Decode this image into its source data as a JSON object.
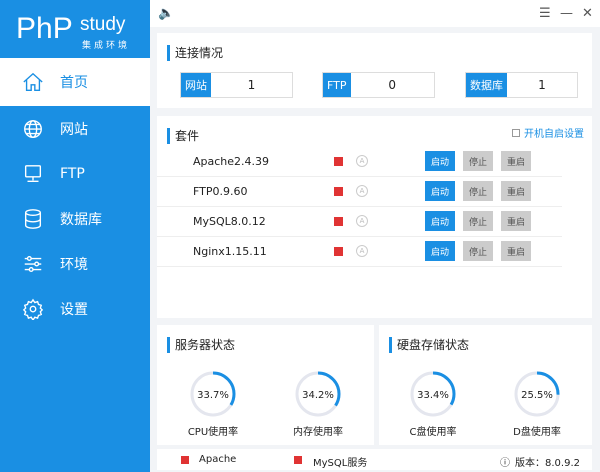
{
  "logo": {
    "main": "PhP",
    "study": "study",
    "sub": "集成环境"
  },
  "sidebar": {
    "items": [
      {
        "label": "首页",
        "icon": "home-icon"
      },
      {
        "label": "网站",
        "icon": "globe-icon"
      },
      {
        "label": "FTP",
        "icon": "server-icon"
      },
      {
        "label": "数据库",
        "icon": "database-icon"
      },
      {
        "label": "环境",
        "icon": "sliders-icon"
      },
      {
        "label": "设置",
        "icon": "gear-icon"
      }
    ]
  },
  "topbar": {
    "sound": "🔈",
    "menu": "☰",
    "minimize": "—",
    "close": "✕"
  },
  "connection": {
    "title": "连接情况",
    "items": [
      {
        "label": "网站",
        "value": "1"
      },
      {
        "label": "FTP",
        "value": "0"
      },
      {
        "label": "数据库",
        "value": "1"
      }
    ]
  },
  "suite": {
    "title": "套件",
    "autostart": "开机自启设置",
    "start": "启动",
    "stop": "停止",
    "restart": "重启",
    "auto_glyph": "A",
    "rows": [
      {
        "name": "Apache2.4.39"
      },
      {
        "name": "FTP0.9.60"
      },
      {
        "name": "MySQL8.0.12"
      },
      {
        "name": "Nginx1.15.11"
      }
    ]
  },
  "server_status": {
    "title": "服务器状态",
    "gauges": [
      {
        "label": "CPU使用率",
        "value": 33.7,
        "text": "33.7%"
      },
      {
        "label": "内存使用率",
        "value": 34.2,
        "text": "34.2%"
      }
    ]
  },
  "disk_status": {
    "title": "硬盘存储状态",
    "gauges": [
      {
        "label": "C盘使用率",
        "value": 33.4,
        "text": "33.4%"
      },
      {
        "label": "D盘使用率",
        "value": 25.5,
        "text": "25.5%"
      }
    ]
  },
  "footer": {
    "apache": "Apache",
    "mysql": "MySQL服务",
    "version": "版本：8.0.9.2",
    "info": "ⓘ"
  },
  "colors": {
    "accent": "#1a8fe3",
    "stopped": "#e03333"
  }
}
